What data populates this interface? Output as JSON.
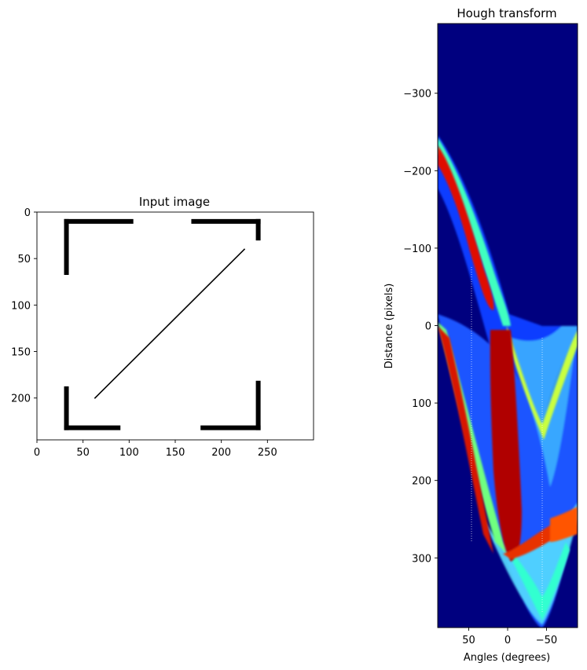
{
  "chart_data": [
    {
      "type": "image",
      "title": "Input image",
      "xlabel": "",
      "ylabel": "",
      "xlim": [
        0,
        300
      ],
      "ylim": [
        245,
        0
      ],
      "x_ticks": [
        0,
        50,
        100,
        150,
        200,
        250
      ],
      "y_ticks": [
        0,
        50,
        100,
        150,
        200
      ],
      "grid": false,
      "colors": {
        "background": "#ffffff",
        "foreground": "#000000"
      },
      "segments": [
        {
          "name": "top-left-horizontal",
          "x1": 32,
          "y1": 10,
          "x2": 102,
          "y2": 10,
          "thick": true
        },
        {
          "name": "top-left-vertical",
          "x1": 32,
          "y1": 10,
          "x2": 32,
          "y2": 65,
          "thick": true
        },
        {
          "name": "top-right-horizontal",
          "x1": 170,
          "y1": 10,
          "x2": 240,
          "y2": 10,
          "thick": true
        },
        {
          "name": "top-right-vertical",
          "x1": 240,
          "y1": 10,
          "x2": 240,
          "y2": 28,
          "thick": true
        },
        {
          "name": "bottom-left-vertical",
          "x1": 32,
          "y1": 190,
          "x2": 32,
          "y2": 232,
          "thick": true
        },
        {
          "name": "bottom-left-horizontal",
          "x1": 32,
          "y1": 232,
          "x2": 88,
          "y2": 232,
          "thick": true
        },
        {
          "name": "bottom-right-vertical",
          "x1": 240,
          "y1": 184,
          "x2": 240,
          "y2": 232,
          "thick": true
        },
        {
          "name": "bottom-right-horizontal",
          "x1": 180,
          "y1": 232,
          "x2": 240,
          "y2": 232,
          "thick": true
        },
        {
          "name": "diagonal",
          "x1": 63,
          "y1": 200,
          "x2": 225,
          "y2": 40,
          "thick": false
        }
      ]
    },
    {
      "type": "heatmap",
      "title": "Hough transform",
      "xlabel": "Angles (degrees)",
      "ylabel": "Distance (pixels)",
      "xlim": [
        90,
        -90
      ],
      "ylim": [
        390,
        -390
      ],
      "x_ticks": [
        50,
        0,
        -50
      ],
      "y_ticks": [
        -300,
        -200,
        -100,
        0,
        100,
        200,
        300
      ],
      "colormap": "jet",
      "grid": false,
      "colors": {
        "background": "#00007f",
        "low": "#0000ff",
        "mid": "#00ffff",
        "high": "#ffff00",
        "peak": "#ff0000"
      }
    }
  ]
}
